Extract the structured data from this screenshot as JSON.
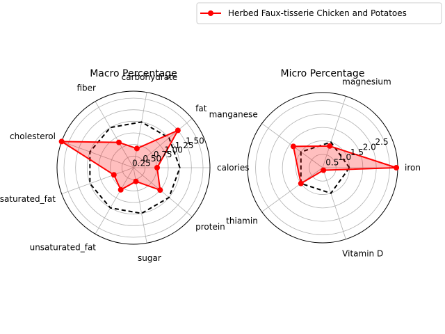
{
  "legend": {
    "label": "Herbed Faux-tisserie Chicken and Potatoes",
    "placement": "upper-right"
  },
  "colors": {
    "series": "#ff0000",
    "fill": "#ff0000",
    "reference": "#000000",
    "grid": "#b0b0b0"
  },
  "chart_data": [
    {
      "type": "radar",
      "title": "Macro Percentage",
      "categories": [
        "calories",
        "fat",
        "carbohydrate",
        "fiber",
        "cholesterol",
        "saturated_fat",
        "unsaturated_fat",
        "sugar",
        "protein"
      ],
      "rticks": [
        0.25,
        0.5,
        0.75,
        1.0,
        1.25,
        1.5
      ],
      "rtick_labels": [
        "0.25",
        "0.50",
        "0.75",
        "1.00",
        "1.25",
        "1.50"
      ],
      "rmax": 1.65,
      "series": [
        {
          "name": "Herbed Faux-tisserie Chicken and Potatoes",
          "values": [
            0.51,
            1.25,
            0.42,
            0.63,
            1.65,
            0.45,
            0.55,
            0.3,
            0.75
          ]
        },
        {
          "values": [
            1.0,
            1.0,
            1.0,
            1.0,
            1.0,
            1.0,
            1.0,
            1.0,
            1.0
          ]
        }
      ]
    },
    {
      "type": "radar",
      "title": "Micro Percentage",
      "categories": [
        "iron",
        "magnesium",
        "manganese",
        "thiamin",
        "Vitamin D"
      ],
      "rticks": [
        0.5,
        1.0,
        1.5,
        2.0,
        2.5
      ],
      "rtick_labels": [
        "0.5",
        "1.0",
        "1.5",
        "2.0",
        "2.5"
      ],
      "rmax": 2.8,
      "series": [
        {
          "name": "Herbed Faux-tisserie Chicken and Potatoes",
          "values": [
            2.75,
            0.85,
            1.35,
            1.0,
            0.1
          ]
        },
        {
          "values": [
            1.0,
            1.0,
            1.0,
            1.0,
            1.0
          ]
        }
      ]
    }
  ]
}
